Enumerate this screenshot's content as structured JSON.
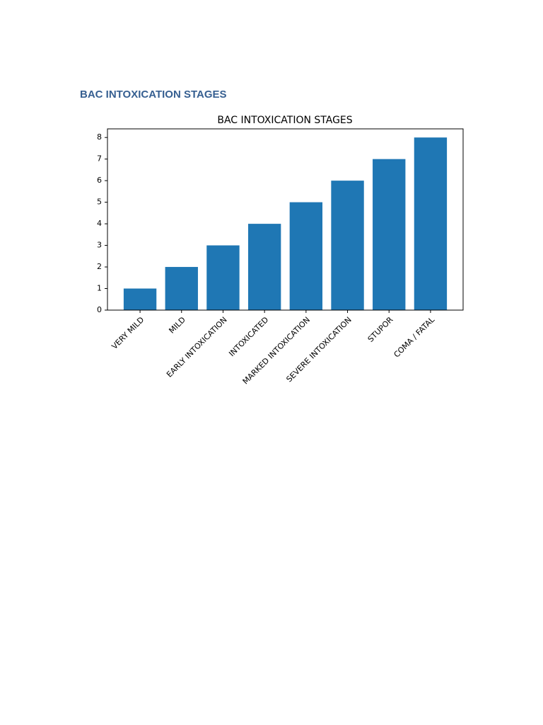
{
  "heading": "BAC INTOXICATION STAGES",
  "chart_data": {
    "type": "bar",
    "title": "BAC INTOXICATION STAGES",
    "categories": [
      "VERY MILD",
      "MILD",
      "EARLY INTOXICATION",
      "INTOXICATED",
      "MARKED INTOXICATION",
      "SEVERE INTOXICATION",
      "STUPOR",
      "COMA / FATAL"
    ],
    "values": [
      1,
      2,
      3,
      4,
      5,
      6,
      7,
      8
    ],
    "color": "#1f77b4",
    "ylim": [
      0,
      8.4
    ],
    "yticks": [
      0,
      1,
      2,
      3,
      4,
      5,
      6,
      7,
      8
    ],
    "grid": false
  }
}
